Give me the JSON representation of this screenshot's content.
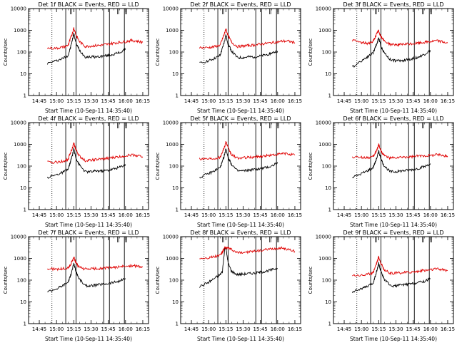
{
  "figure": {
    "panel_title_suffix": " BLACK = Events, RED = LLD",
    "xlabel": "Start Time (10-Sep-11 14:35:40)",
    "ylabel": "Counts/sec",
    "x_ticks": [
      "14:45",
      "15:00",
      "15:15",
      "15:30",
      "15:45",
      "16:00",
      "16:15"
    ],
    "y_ticks": [
      "1",
      "10",
      "100",
      "1000",
      "10000"
    ],
    "colors": {
      "events": "#000000",
      "lld": "#e00000",
      "axes": "#000000"
    }
  },
  "chart_data": [
    {
      "type": "line",
      "title": "Det 1f BLACK = Events, RED = LLD",
      "xlabel": "Start Time (10-Sep-11 14:35:40)",
      "ylabel": "Counts/sec",
      "ylog": true,
      "ylim": [
        1,
        10000
      ],
      "xlim": [
        "14:35:40",
        "16:20:00"
      ],
      "x": [
        "14:52",
        "15:00",
        "15:05",
        "15:10",
        "15:12",
        "15:14",
        "15:15",
        "15:17",
        "15:20",
        "15:25",
        "15:30",
        "15:35",
        "15:40",
        "15:45",
        "15:50",
        "15:55",
        "16:00",
        "16:05",
        "16:10",
        "16:15"
      ],
      "series": [
        {
          "name": "Events",
          "values": [
            30,
            40,
            50,
            70,
            150,
            400,
            700,
            250,
            120,
            60,
            60,
            60,
            65,
            70,
            80,
            95,
            130,
            null,
            null,
            null
          ]
        },
        {
          "name": "LLD",
          "values": [
            150,
            150,
            165,
            200,
            400,
            800,
            1300,
            600,
            300,
            180,
            190,
            200,
            210,
            230,
            260,
            280,
            300,
            340,
            320,
            280
          ]
        }
      ]
    },
    {
      "type": "line",
      "title": "Det 2f BLACK = Events, RED = LLD",
      "xlabel": "Start Time (10-Sep-11 14:35:40)",
      "ylabel": "Counts/sec",
      "ylog": true,
      "ylim": [
        1,
        10000
      ],
      "xlim": [
        "14:35:40",
        "16:20:00"
      ],
      "x": [
        "14:52",
        "15:00",
        "15:05",
        "15:10",
        "15:12",
        "15:14",
        "15:15",
        "15:17",
        "15:20",
        "15:25",
        "15:30",
        "15:35",
        "15:40",
        "15:45",
        "15:50",
        "15:55",
        "16:00",
        "16:05",
        "16:10",
        "16:15"
      ],
      "series": [
        {
          "name": "Events",
          "values": [
            30,
            40,
            50,
            70,
            150,
            350,
            600,
            230,
            110,
            55,
            55,
            60,
            60,
            65,
            75,
            90,
            110,
            null,
            null,
            null
          ]
        },
        {
          "name": "LLD",
          "values": [
            160,
            160,
            175,
            210,
            400,
            750,
            1200,
            550,
            280,
            180,
            190,
            200,
            210,
            230,
            250,
            270,
            290,
            320,
            310,
            270
          ]
        }
      ]
    },
    {
      "type": "line",
      "title": "Det 3f BLACK = Events, RED = LLD",
      "xlabel": "Start Time (10-Sep-11 14:35:40)",
      "ylabel": "Counts/sec",
      "ylog": true,
      "ylim": [
        1,
        10000
      ],
      "xlim": [
        "14:35:40",
        "16:20:00"
      ],
      "x": [
        "14:52",
        "15:00",
        "15:05",
        "15:10",
        "15:12",
        "15:14",
        "15:15",
        "15:17",
        "15:20",
        "15:25",
        "15:30",
        "15:35",
        "15:40",
        "15:45",
        "15:50",
        "15:55",
        "16:00",
        "16:05",
        "16:10",
        "16:15"
      ],
      "series": [
        {
          "name": "Events",
          "values": [
            20,
            40,
            60,
            90,
            160,
            300,
            450,
            180,
            90,
            45,
            40,
            40,
            45,
            50,
            60,
            80,
            120,
            null,
            null,
            null
          ]
        },
        {
          "name": "LLD",
          "values": [
            350,
            270,
            250,
            300,
            500,
            800,
            950,
            500,
            320,
            230,
            220,
            220,
            230,
            240,
            260,
            280,
            300,
            330,
            300,
            260
          ]
        }
      ]
    },
    {
      "type": "line",
      "title": "Det 4f BLACK = Events, RED = LLD",
      "xlabel": "Start Time (10-Sep-11 14:35:40)",
      "ylabel": "Counts/sec",
      "ylog": true,
      "ylim": [
        1,
        10000
      ],
      "xlim": [
        "14:35:40",
        "16:20:00"
      ],
      "x": [
        "14:52",
        "15:00",
        "15:05",
        "15:10",
        "15:12",
        "15:14",
        "15:15",
        "15:17",
        "15:20",
        "15:25",
        "15:30",
        "15:35",
        "15:40",
        "15:45",
        "15:50",
        "15:55",
        "16:00",
        "16:05",
        "16:10",
        "16:15"
      ],
      "series": [
        {
          "name": "Events",
          "values": [
            30,
            40,
            50,
            70,
            150,
            350,
            600,
            230,
            110,
            55,
            55,
            60,
            60,
            65,
            75,
            90,
            120,
            null,
            null,
            null
          ]
        },
        {
          "name": "LLD",
          "values": [
            150,
            150,
            165,
            200,
            400,
            750,
            1100,
            550,
            280,
            180,
            190,
            200,
            210,
            230,
            250,
            270,
            300,
            330,
            310,
            270
          ]
        }
      ]
    },
    {
      "type": "line",
      "title": "Det 5f BLACK = Events, RED = LLD",
      "xlabel": "Start Time (10-Sep-11 14:35:40)",
      "ylabel": "Counts/sec",
      "ylog": true,
      "ylim": [
        1,
        10000
      ],
      "xlim": [
        "14:35:40",
        "16:20:00"
      ],
      "x": [
        "14:52",
        "15:00",
        "15:05",
        "15:10",
        "15:12",
        "15:14",
        "15:15",
        "15:17",
        "15:20",
        "15:25",
        "15:30",
        "15:35",
        "15:40",
        "15:45",
        "15:50",
        "15:55",
        "16:00",
        "16:05",
        "16:10",
        "16:15"
      ],
      "series": [
        {
          "name": "Events",
          "values": [
            30,
            45,
            60,
            85,
            160,
            350,
            650,
            250,
            120,
            60,
            60,
            65,
            70,
            75,
            85,
            100,
            150,
            null,
            null,
            null
          ]
        },
        {
          "name": "LLD",
          "values": [
            220,
            220,
            230,
            260,
            450,
            800,
            1400,
            650,
            330,
            230,
            240,
            250,
            260,
            280,
            300,
            320,
            340,
            380,
            360,
            320
          ]
        }
      ]
    },
    {
      "type": "line",
      "title": "Det 6f BLACK = Events, RED = LLD",
      "xlabel": "Start Time (10-Sep-11 14:35:40)",
      "ylabel": "Counts/sec",
      "ylog": true,
      "ylim": [
        1,
        10000
      ],
      "xlim": [
        "14:35:40",
        "16:20:00"
      ],
      "x": [
        "14:52",
        "15:00",
        "15:05",
        "15:10",
        "15:12",
        "15:14",
        "15:15",
        "15:17",
        "15:20",
        "15:25",
        "15:30",
        "15:35",
        "15:40",
        "15:45",
        "15:50",
        "15:55",
        "16:00",
        "16:05",
        "16:10",
        "16:15"
      ],
      "series": [
        {
          "name": "Events",
          "values": [
            30,
            45,
            60,
            85,
            150,
            300,
            500,
            200,
            100,
            55,
            55,
            60,
            65,
            70,
            80,
            95,
            130,
            null,
            null,
            null
          ]
        },
        {
          "name": "LLD",
          "values": [
            260,
            250,
            250,
            260,
            400,
            650,
            1000,
            500,
            300,
            230,
            240,
            250,
            260,
            270,
            290,
            300,
            310,
            340,
            320,
            290
          ]
        }
      ]
    },
    {
      "type": "line",
      "title": "Det 7f BLACK = Events, RED = LLD",
      "xlabel": "Start Time (10-Sep-11 14:35:40)",
      "ylabel": "Counts/sec",
      "ylog": true,
      "ylim": [
        1,
        10000
      ],
      "xlim": [
        "14:35:40",
        "16:20:00"
      ],
      "x": [
        "14:52",
        "15:00",
        "15:05",
        "15:10",
        "15:12",
        "15:14",
        "15:15",
        "15:17",
        "15:20",
        "15:25",
        "15:30",
        "15:35",
        "15:40",
        "15:45",
        "15:50",
        "15:55",
        "16:00",
        "16:05",
        "16:10",
        "16:15"
      ],
      "series": [
        {
          "name": "Events",
          "values": [
            30,
            40,
            55,
            80,
            150,
            350,
            600,
            230,
            110,
            55,
            55,
            60,
            65,
            70,
            80,
            90,
            120,
            null,
            null,
            null
          ]
        },
        {
          "name": "LLD",
          "values": [
            330,
            320,
            330,
            360,
            500,
            800,
            1200,
            600,
            380,
            320,
            330,
            340,
            350,
            370,
            390,
            410,
            430,
            460,
            440,
            400
          ]
        }
      ]
    },
    {
      "type": "line",
      "title": "Det 8f BLACK = Events, RED = LLD",
      "xlabel": "Start Time (10-Sep-11 14:35:40)",
      "ylabel": "Counts/sec",
      "ylog": true,
      "ylim": [
        1,
        10000
      ],
      "xlim": [
        "14:35:40",
        "16:20:00"
      ],
      "x": [
        "14:52",
        "15:00",
        "15:05",
        "15:10",
        "15:12",
        "15:14",
        "15:15",
        "15:17",
        "15:20",
        "15:25",
        "15:30",
        "15:35",
        "15:40",
        "15:45",
        "15:50",
        "15:55",
        "16:00",
        "16:05",
        "16:10",
        "16:15"
      ],
      "series": [
        {
          "name": "Events",
          "values": [
            50,
            80,
            120,
            180,
            250,
            3000,
            3000,
            600,
            250,
            180,
            190,
            200,
            210,
            230,
            260,
            300,
            350,
            null,
            null,
            null
          ]
        },
        {
          "name": "LLD",
          "values": [
            1000,
            1100,
            1200,
            1400,
            2000,
            3000,
            3000,
            3000,
            2500,
            1800,
            1900,
            2000,
            2100,
            2300,
            2500,
            2700,
            2900,
            3000,
            2500,
            2100
          ]
        }
      ]
    },
    {
      "type": "line",
      "title": "Det 9f BLACK = Events, RED = LLD",
      "xlabel": "Start Time (10-Sep-11 14:35:40)",
      "ylabel": "Counts/sec",
      "ylog": true,
      "ylim": [
        1,
        10000
      ],
      "xlim": [
        "14:35:40",
        "16:20:00"
      ],
      "x": [
        "14:52",
        "15:00",
        "15:05",
        "15:10",
        "15:12",
        "15:14",
        "15:15",
        "15:17",
        "15:20",
        "15:25",
        "15:30",
        "15:35",
        "15:40",
        "15:45",
        "15:50",
        "15:55",
        "16:00",
        "16:05",
        "16:10",
        "16:15"
      ],
      "series": [
        {
          "name": "Events",
          "values": [
            30,
            40,
            50,
            70,
            150,
            350,
            600,
            230,
            110,
            55,
            55,
            60,
            65,
            70,
            80,
            90,
            120,
            null,
            null,
            null
          ]
        },
        {
          "name": "LLD",
          "values": [
            170,
            170,
            180,
            220,
            420,
            800,
            1200,
            580,
            300,
            200,
            210,
            220,
            230,
            240,
            260,
            280,
            300,
            330,
            310,
            270
          ]
        }
      ]
    }
  ],
  "markers": {
    "dotted": [
      "14:56"
    ],
    "solid": [
      "15:08",
      "15:17",
      "15:41",
      "15:46",
      "15:59"
    ],
    "cursor_marks": [
      "15:12",
      "15:13",
      "15:53",
      "15:54",
      "16:00",
      "16:01"
    ]
  }
}
